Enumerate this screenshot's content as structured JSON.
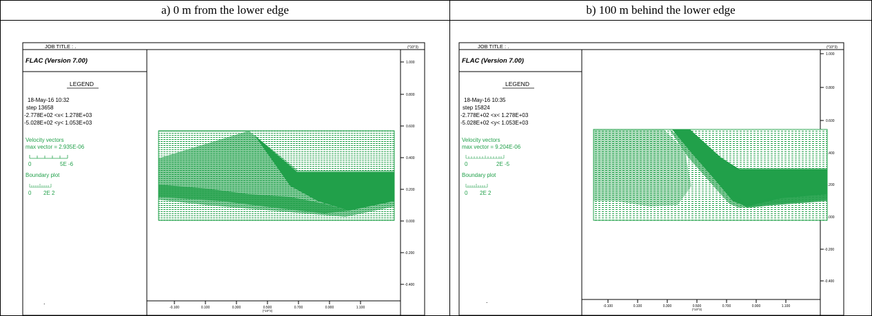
{
  "table": {
    "headers": [
      "a) 0 m from the lower edge",
      "b) 100 m behind the lower edge"
    ]
  },
  "colors": {
    "vector": "#21a04a",
    "frame": "#000000"
  },
  "panels": [
    {
      "job_title": "JOB TITLE : .",
      "software": "FLAC (Version 7.00)",
      "legend_title": "LEGEND",
      "date": "18-May-16 10:32",
      "step": "step    13658",
      "x_range": "-2.778E+02 <x< 1.278E+03",
      "y_range": "-5.028E+02 <y< 1.053E+03",
      "velocity_title": "Velocity vectors",
      "max_vector": "max vector =    2.935E-06",
      "vel_scale_zero": "0",
      "vel_scale_max": "5E -6",
      "boundary_title": "Boundary plot",
      "bnd_scale_zero": "0",
      "bnd_scale_max": "2E  2",
      "bottom_mark": ".",
      "y_exp": "(*10^3)",
      "x_exp": "(*10^3)",
      "y_ticks": [
        "1.000",
        "0.800",
        "0.600",
        "0.400",
        "0.200",
        "0.000",
        "-0.200",
        "-0.400"
      ],
      "x_ticks": [
        "-0.100",
        "0.100",
        "0.300",
        "0.500",
        "0.700",
        "0.900",
        "1.100"
      ]
    },
    {
      "job_title": "JOB TITLE : .",
      "software": "FLAC (Version 7.00)",
      "legend_title": "LEGEND",
      "date": "18-May-16 10:35",
      "step": "step    15824",
      "x_range": "-2.778E+02 <x< 1.278E+03",
      "y_range": "-5.028E+02 <y< 1.053E+03",
      "velocity_title": "Velocity vectors",
      "max_vector": "max vector =    9.204E-06",
      "vel_scale_zero": "0",
      "vel_scale_max": "2E -5",
      "boundary_title": "Boundary plot",
      "bnd_scale_zero": "0",
      "bnd_scale_max": "2E  2",
      "bottom_mark": ".",
      "y_exp": "(*10^3)",
      "x_exp": "(*10^3)",
      "y_ticks": [
        "1.000",
        "0.800",
        "0.600",
        "0.400",
        "0.200",
        "0.000",
        "-0.200",
        "-0.400"
      ],
      "x_ticks": [
        "-0.100",
        "0.100",
        "0.300",
        "0.500",
        "0.700",
        "0.900",
        "1.100"
      ]
    }
  ]
}
